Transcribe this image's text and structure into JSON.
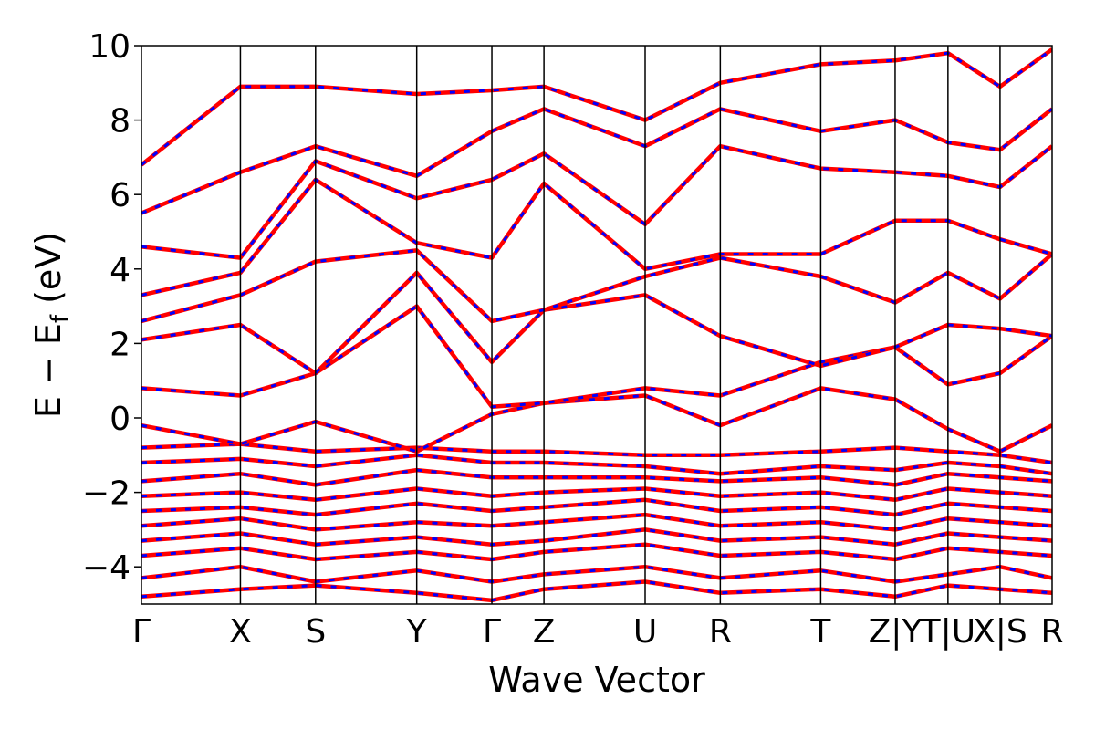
{
  "chart_data": {
    "type": "line",
    "title": "",
    "xlabel": "Wave Vector",
    "ylabel_main": "E − E",
    "ylabel_sub": "f",
    "ylabel_unit": " (eV)",
    "ylim": [
      -5,
      10
    ],
    "yticks": [
      10,
      8,
      6,
      4,
      2,
      0,
      -2,
      -4
    ],
    "ytick_labels": [
      "10",
      "8",
      "6",
      "4",
      "2",
      "0",
      "−2",
      "−4"
    ],
    "xlim": [
      0,
      12.24
    ],
    "kpoints": [
      {
        "label": "Γ",
        "x": 0
      },
      {
        "label": "X",
        "x": 1.33
      },
      {
        "label": "S",
        "x": 2.34
      },
      {
        "label": "Y",
        "x": 3.7
      },
      {
        "label": "Γ",
        "x": 4.71
      },
      {
        "label": "Z",
        "x": 5.41
      },
      {
        "label": "U",
        "x": 6.77
      },
      {
        "label": "R",
        "x": 7.78
      },
      {
        "label": "T",
        "x": 9.13
      },
      {
        "label": "Z|Y",
        "x": 10.13
      },
      {
        "label": "T|U",
        "x": 10.84
      },
      {
        "label": "X|S",
        "x": 11.54
      },
      {
        "label": "R",
        "x": 12.24
      }
    ],
    "series": [
      {
        "color": "#ff0000",
        "style": "solid"
      },
      {
        "color": "#0000ff",
        "style": "dashed"
      }
    ],
    "bands": [
      {
        "x": [
          0,
          1.33,
          2.34,
          3.7,
          4.71,
          5.41,
          6.77,
          7.78,
          9.13,
          10.13,
          10.84,
          11.54,
          12.24
        ],
        "y": [
          -4.8,
          -4.6,
          -4.5,
          -4.7,
          -4.9,
          -4.6,
          -4.4,
          -4.7,
          -4.6,
          -4.8,
          -4.5,
          -4.6,
          -4.7
        ]
      },
      {
        "x": [
          0,
          1.33,
          2.34,
          3.7,
          4.71,
          5.41,
          6.77,
          7.78,
          9.13,
          10.13,
          10.84,
          11.54,
          12.24
        ],
        "y": [
          -4.3,
          -4.0,
          -4.4,
          -4.1,
          -4.4,
          -4.2,
          -4.0,
          -4.3,
          -4.1,
          -4.4,
          -4.2,
          -4.0,
          -4.3
        ]
      },
      {
        "x": [
          0,
          1.33,
          2.34,
          3.7,
          4.71,
          5.41,
          6.77,
          7.78,
          9.13,
          10.13,
          10.84,
          11.54,
          12.24
        ],
        "y": [
          -3.7,
          -3.5,
          -3.8,
          -3.6,
          -3.8,
          -3.6,
          -3.4,
          -3.7,
          -3.6,
          -3.8,
          -3.5,
          -3.6,
          -3.7
        ]
      },
      {
        "x": [
          0,
          1.33,
          2.34,
          3.7,
          4.71,
          5.41,
          6.77,
          7.78,
          9.13,
          10.13,
          10.84,
          11.54,
          12.24
        ],
        "y": [
          -3.3,
          -3.1,
          -3.4,
          -3.2,
          -3.4,
          -3.3,
          -3.0,
          -3.3,
          -3.2,
          -3.4,
          -3.1,
          -3.2,
          -3.3
        ]
      },
      {
        "x": [
          0,
          1.33,
          2.34,
          3.7,
          4.71,
          5.41,
          6.77,
          7.78,
          9.13,
          10.13,
          10.84,
          11.54,
          12.24
        ],
        "y": [
          -2.9,
          -2.7,
          -3.0,
          -2.8,
          -2.9,
          -2.8,
          -2.6,
          -2.9,
          -2.8,
          -3.0,
          -2.7,
          -2.8,
          -2.9
        ]
      },
      {
        "x": [
          0,
          1.33,
          2.34,
          3.7,
          4.71,
          5.41,
          6.77,
          7.78,
          9.13,
          10.13,
          10.84,
          11.54,
          12.24
        ],
        "y": [
          -2.5,
          -2.4,
          -2.6,
          -2.3,
          -2.5,
          -2.4,
          -2.2,
          -2.5,
          -2.4,
          -2.6,
          -2.3,
          -2.4,
          -2.5
        ]
      },
      {
        "x": [
          0,
          1.33,
          2.34,
          3.7,
          4.71,
          5.41,
          6.77,
          7.78,
          9.13,
          10.13,
          10.84,
          11.54,
          12.24
        ],
        "y": [
          -2.1,
          -2.0,
          -2.2,
          -1.9,
          -2.1,
          -2.0,
          -1.9,
          -2.1,
          -2.0,
          -2.2,
          -1.9,
          -2.0,
          -2.1
        ]
      },
      {
        "x": [
          0,
          1.33,
          2.34,
          3.7,
          4.71,
          5.41,
          6.77,
          7.78,
          9.13,
          10.13,
          10.84,
          11.54,
          12.24
        ],
        "y": [
          -1.7,
          -1.5,
          -1.8,
          -1.4,
          -1.6,
          -1.6,
          -1.6,
          -1.7,
          -1.6,
          -1.8,
          -1.5,
          -1.6,
          -1.7
        ]
      },
      {
        "x": [
          0,
          1.33,
          2.34,
          3.7,
          4.71,
          5.41,
          6.77,
          7.78,
          9.13,
          10.13,
          10.84,
          11.54,
          12.24
        ],
        "y": [
          -1.2,
          -1.1,
          -1.3,
          -1.0,
          -1.2,
          -1.2,
          -1.3,
          -1.5,
          -1.3,
          -1.4,
          -1.2,
          -1.3,
          -1.5
        ]
      },
      {
        "x": [
          0,
          1.33,
          2.34,
          3.7,
          4.71,
          5.41,
          6.77,
          7.78,
          9.13,
          10.13,
          10.84,
          11.54,
          12.24
        ],
        "y": [
          -0.8,
          -0.7,
          -0.9,
          -0.8,
          -0.9,
          -0.9,
          -1.0,
          -1.0,
          -0.9,
          -0.8,
          -0.9,
          -1.0,
          -1.2
        ]
      },
      {
        "x": [
          0,
          1.33,
          2.34,
          3.7,
          4.71,
          5.41,
          6.77,
          7.78,
          9.13,
          10.13,
          10.84,
          11.54,
          12.24
        ],
        "y": [
          -0.2,
          -0.7,
          -0.1,
          -0.9,
          0.1,
          0.4,
          0.6,
          -0.2,
          0.8,
          0.5,
          -0.3,
          -0.9,
          -0.2
        ]
      },
      {
        "x": [
          0,
          1.33,
          2.34,
          3.7,
          4.71,
          5.41,
          6.77,
          7.78,
          9.13,
          10.13,
          10.84,
          11.54,
          12.24
        ],
        "y": [
          0.8,
          0.6,
          1.2,
          3.0,
          0.3,
          0.4,
          0.8,
          0.6,
          1.5,
          1.9,
          0.9,
          1.2,
          2.2
        ]
      },
      {
        "x": [
          0,
          1.33,
          2.34,
          3.7,
          4.71,
          5.41,
          6.77,
          7.78,
          9.13,
          10.13,
          10.84,
          11.54,
          12.24
        ],
        "y": [
          2.1,
          2.5,
          1.2,
          3.9,
          1.5,
          2.9,
          3.3,
          2.2,
          1.4,
          1.9,
          2.5,
          2.4,
          2.2
        ]
      },
      {
        "x": [
          0,
          1.33,
          2.34,
          3.7,
          4.71,
          5.41,
          6.77,
          7.78,
          9.13,
          10.13,
          10.84,
          11.54,
          12.24
        ],
        "y": [
          2.6,
          3.3,
          4.2,
          4.5,
          2.6,
          2.9,
          3.8,
          4.3,
          3.8,
          3.1,
          3.9,
          3.2,
          4.4
        ]
      },
      {
        "x": [
          0,
          1.33,
          2.34,
          3.7,
          4.71,
          5.41,
          6.77,
          7.78,
          9.13,
          10.13,
          10.84,
          11.54,
          12.24
        ],
        "y": [
          3.3,
          3.9,
          6.4,
          4.7,
          4.3,
          6.3,
          4.0,
          4.4,
          4.4,
          5.3,
          5.3,
          4.8,
          4.4
        ]
      },
      {
        "x": [
          0,
          1.33,
          2.34,
          3.7,
          4.71,
          5.41,
          6.77,
          7.78,
          9.13,
          10.13,
          10.84,
          11.54,
          12.24
        ],
        "y": [
          4.6,
          4.3,
          6.9,
          5.9,
          6.4,
          7.1,
          5.2,
          7.3,
          6.7,
          6.6,
          6.5,
          6.2,
          7.3
        ]
      },
      {
        "x": [
          0,
          1.33,
          2.34,
          3.7,
          4.71,
          5.41,
          6.77,
          7.78,
          9.13,
          10.13,
          10.84,
          11.54,
          12.24
        ],
        "y": [
          5.5,
          6.6,
          7.3,
          6.5,
          7.7,
          8.3,
          7.3,
          8.3,
          7.7,
          8.0,
          7.4,
          7.2,
          8.3
        ]
      },
      {
        "x": [
          0,
          1.33,
          2.34,
          3.7,
          4.71,
          5.41,
          6.77,
          7.78,
          9.13,
          10.13,
          10.84,
          11.54,
          12.24
        ],
        "y": [
          6.8,
          8.9,
          8.9,
          8.7,
          8.8,
          8.9,
          8.0,
          9.0,
          9.5,
          9.6,
          9.8,
          8.9,
          9.9
        ]
      }
    ]
  }
}
